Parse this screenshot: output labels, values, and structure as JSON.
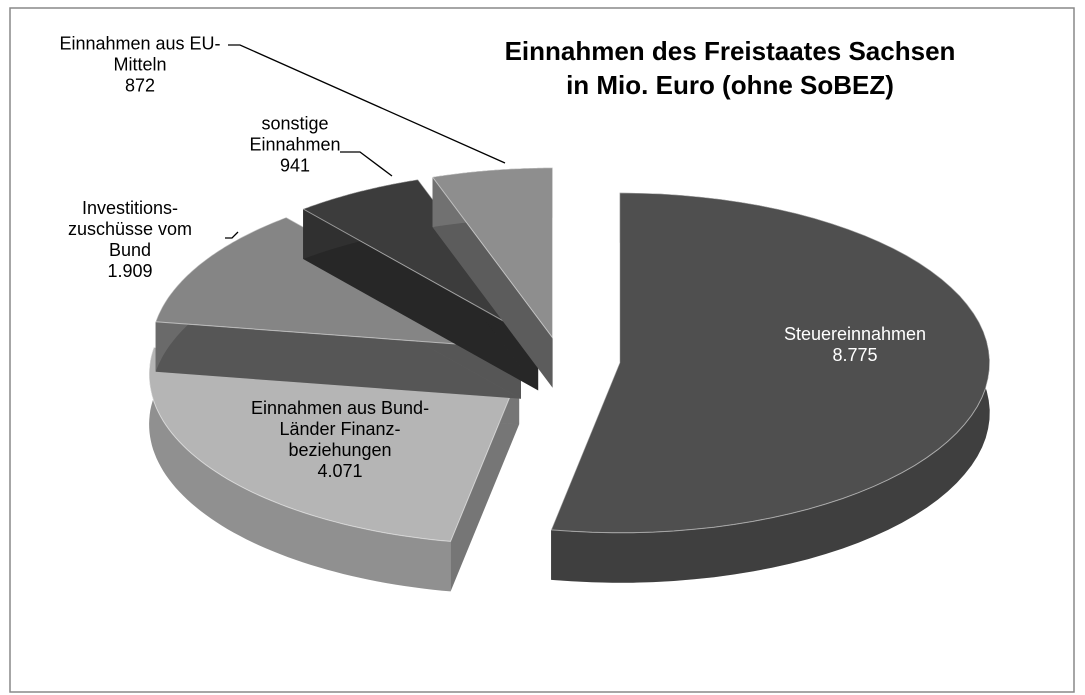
{
  "chart_data": {
    "type": "pie",
    "title": "Einnahmen des Freistaates Sachsen in Mio. Euro (ohne SoBEZ)",
    "categories": [
      "Steuereinnahmen",
      "Einnahmen aus Bund-Länder Finanz-beziehungen",
      "Investitions-zuschüsse vom Bund",
      "sonstige Einnahmen",
      "Einnahmen aus EU-Mitteln"
    ],
    "values": [
      8775,
      4071,
      1909,
      941,
      872
    ],
    "value_labels": [
      "8.775",
      "4.071",
      "1.909",
      "941",
      "872"
    ],
    "colors": [
      "#4f4f4f",
      "#b5b5b5",
      "#858585",
      "#3c3c3c",
      "#8e8e8e"
    ]
  }
}
